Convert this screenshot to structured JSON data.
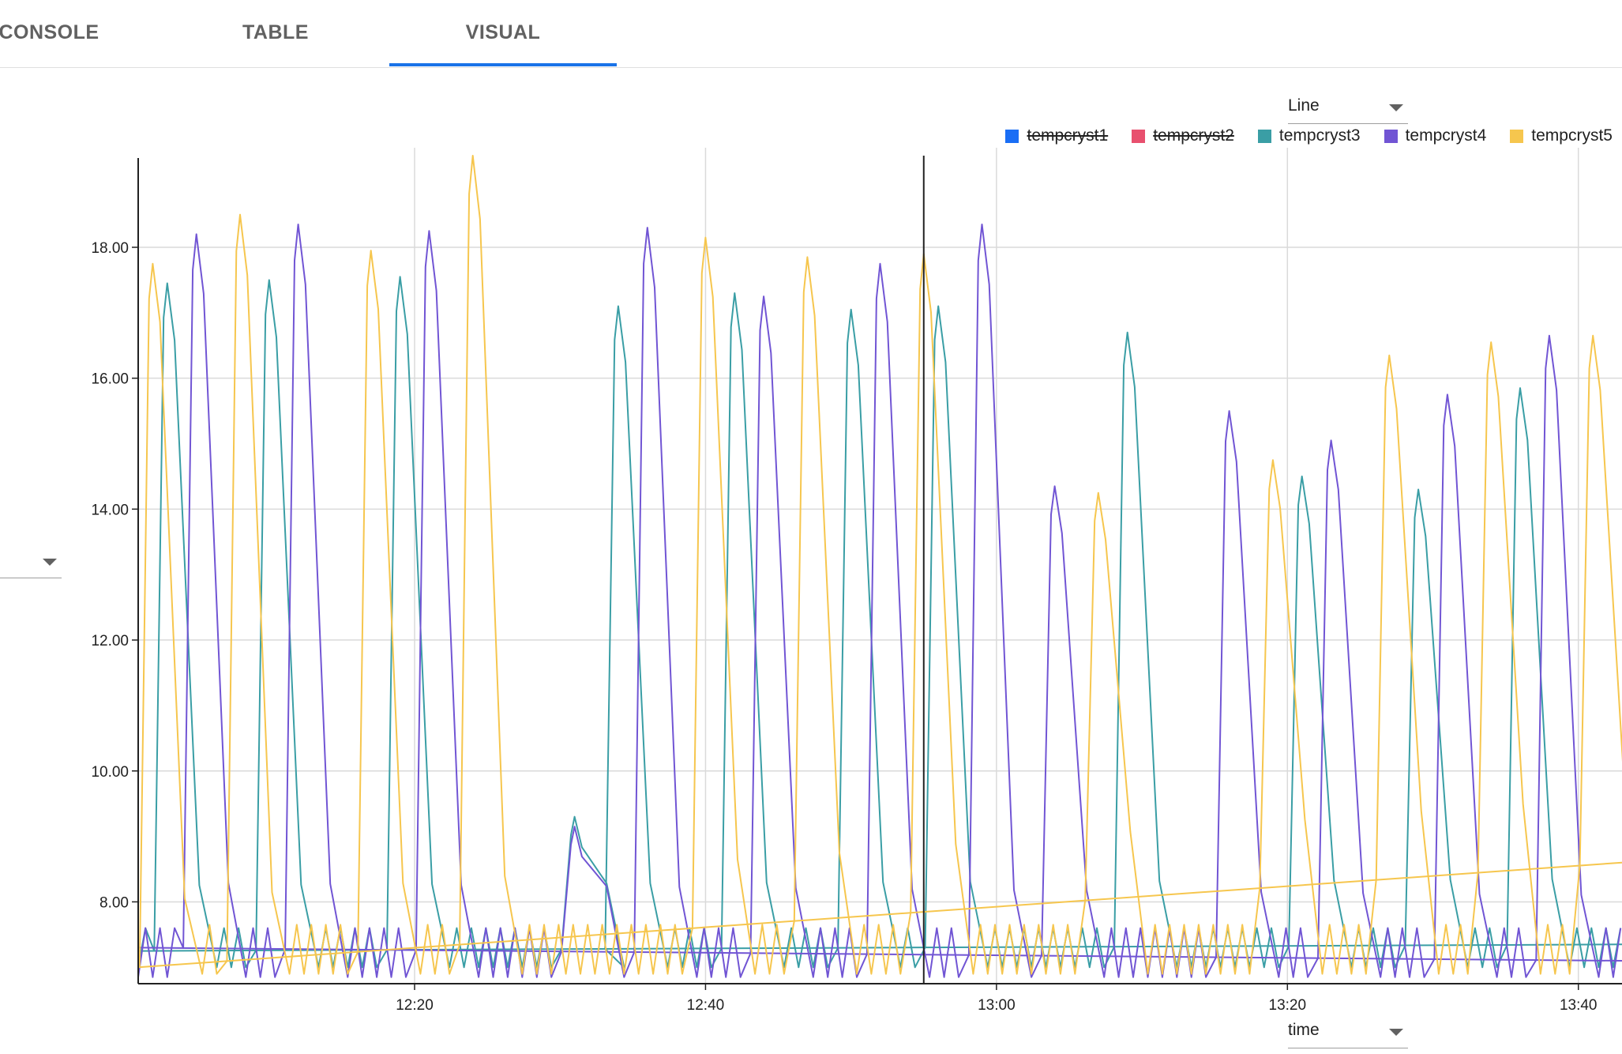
{
  "tabs": [
    {
      "label": "CONSOLE",
      "active": false
    },
    {
      "label": "TABLE",
      "active": false
    },
    {
      "label": "VISUAL",
      "active": true
    }
  ],
  "chart_type_select": {
    "value": "Line"
  },
  "x_field_select": {
    "value": "time"
  },
  "y_field_select": {
    "value": ""
  },
  "colors": {
    "accent": "#1a73e8"
  },
  "chart_data": {
    "type": "line",
    "title": "",
    "xlabel": "",
    "ylabel": "",
    "xlim": [
      "12:01",
      "13:43"
    ],
    "ylim": [
      6.75,
      19.4
    ],
    "x_ticks": [
      "12:20",
      "12:40",
      "13:00",
      "13:20",
      "13:40"
    ],
    "y_ticks": [
      "8.00",
      "10.00",
      "12.00",
      "14.00",
      "16.00",
      "18.00"
    ],
    "grid": true,
    "legend_position": "top-right",
    "cursor_time": "12:55",
    "series": [
      {
        "name": "tempcryst1",
        "color": "#1a6ef5",
        "hidden": true,
        "x": [],
        "y": []
      },
      {
        "name": "tempcryst2",
        "color": "#e8506e",
        "hidden": true,
        "x": [],
        "y": []
      },
      {
        "name": "tempcryst3",
        "color": "#3a9ea5",
        "hidden": false,
        "baseline": {
          "x": [
            "12:01",
            "13:43"
          ],
          "y": [
            7.25,
            7.35
          ]
        },
        "cycle_low": 7.0,
        "cycle_high": 7.6,
        "peaks": [
          {
            "x": "12:03",
            "y": 17.45
          },
          {
            "x": "12:10",
            "y": 17.5
          },
          {
            "x": "12:19",
            "y": 17.55
          },
          {
            "x": "12:31",
            "y": 9.3
          },
          {
            "x": "12:34",
            "y": 17.1
          },
          {
            "x": "12:42",
            "y": 17.3
          },
          {
            "x": "12:50",
            "y": 17.05
          },
          {
            "x": "12:56",
            "y": 17.1
          },
          {
            "x": "13:09",
            "y": 16.7
          },
          {
            "x": "13:21",
            "y": 14.5
          },
          {
            "x": "13:29",
            "y": 14.3
          },
          {
            "x": "13:36",
            "y": 15.85
          }
        ]
      },
      {
        "name": "tempcryst4",
        "color": "#7155d4",
        "hidden": false,
        "baseline": {
          "x": [
            "12:01",
            "13:43"
          ],
          "y": [
            7.3,
            7.1
          ]
        },
        "cycle_low": 6.85,
        "cycle_high": 7.6,
        "peaks": [
          {
            "x": "12:05",
            "y": 18.2
          },
          {
            "x": "12:12",
            "y": 18.35
          },
          {
            "x": "12:21",
            "y": 18.25
          },
          {
            "x": "12:31",
            "y": 9.15
          },
          {
            "x": "12:36",
            "y": 18.3
          },
          {
            "x": "12:44",
            "y": 17.25
          },
          {
            "x": "12:52",
            "y": 17.75
          },
          {
            "x": "12:59",
            "y": 18.35
          },
          {
            "x": "13:04",
            "y": 14.35
          },
          {
            "x": "13:16",
            "y": 15.5
          },
          {
            "x": "13:23",
            "y": 15.05
          },
          {
            "x": "13:31",
            "y": 15.75
          },
          {
            "x": "13:38",
            "y": 16.65
          }
        ]
      },
      {
        "name": "tempcryst5",
        "color": "#f6c64e",
        "hidden": false,
        "baseline": {
          "x": [
            "12:01",
            "13:43"
          ],
          "y": [
            7.0,
            8.6
          ]
        },
        "cycle_low": 6.9,
        "cycle_high": 7.65,
        "peaks": [
          {
            "x": "12:02",
            "y": 17.75
          },
          {
            "x": "12:08",
            "y": 18.5
          },
          {
            "x": "12:17",
            "y": 17.95
          },
          {
            "x": "12:24",
            "y": 19.4
          },
          {
            "x": "12:40",
            "y": 18.15
          },
          {
            "x": "12:47",
            "y": 17.85
          },
          {
            "x": "12:55",
            "y": 17.9
          },
          {
            "x": "13:07",
            "y": 14.25
          },
          {
            "x": "13:19",
            "y": 14.75
          },
          {
            "x": "13:27",
            "y": 16.35
          },
          {
            "x": "13:34",
            "y": 16.55
          },
          {
            "x": "13:41",
            "y": 16.65
          }
        ]
      }
    ]
  }
}
